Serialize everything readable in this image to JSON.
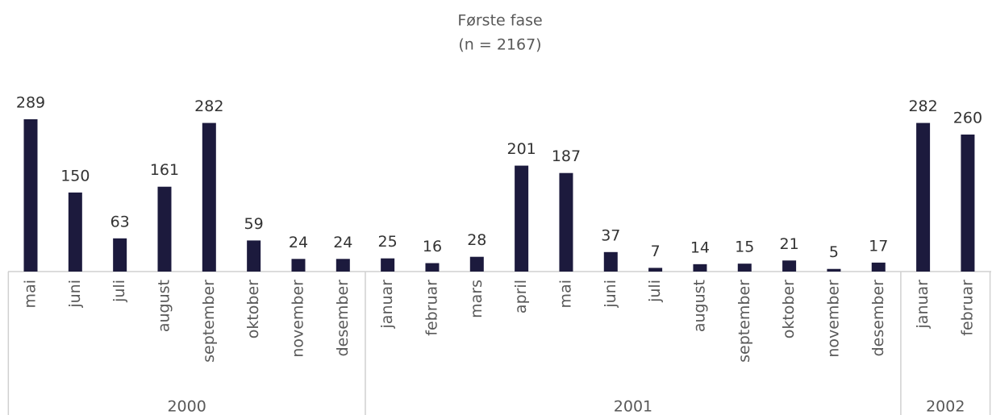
{
  "chart_data": {
    "type": "bar",
    "title": "Første fase",
    "subtitle": "(n = 2167)",
    "color": "#1c1a3d",
    "groups": [
      {
        "label": "2000",
        "categories": [
          "mai",
          "juni",
          "juli",
          "august",
          "september",
          "oktober",
          "november",
          "desember"
        ],
        "values": [
          289,
          150,
          63,
          161,
          282,
          59,
          24,
          24
        ]
      },
      {
        "label": "2001",
        "categories": [
          "januar",
          "februar",
          "mars",
          "april",
          "mai",
          "juni",
          "juli",
          "august",
          "september",
          "oktober",
          "november",
          "desember"
        ],
        "values": [
          25,
          16,
          28,
          201,
          187,
          37,
          7,
          14,
          15,
          21,
          5,
          17
        ]
      },
      {
        "label": "2002",
        "categories": [
          "januar",
          "februar"
        ],
        "values": [
          282,
          260
        ]
      }
    ]
  }
}
